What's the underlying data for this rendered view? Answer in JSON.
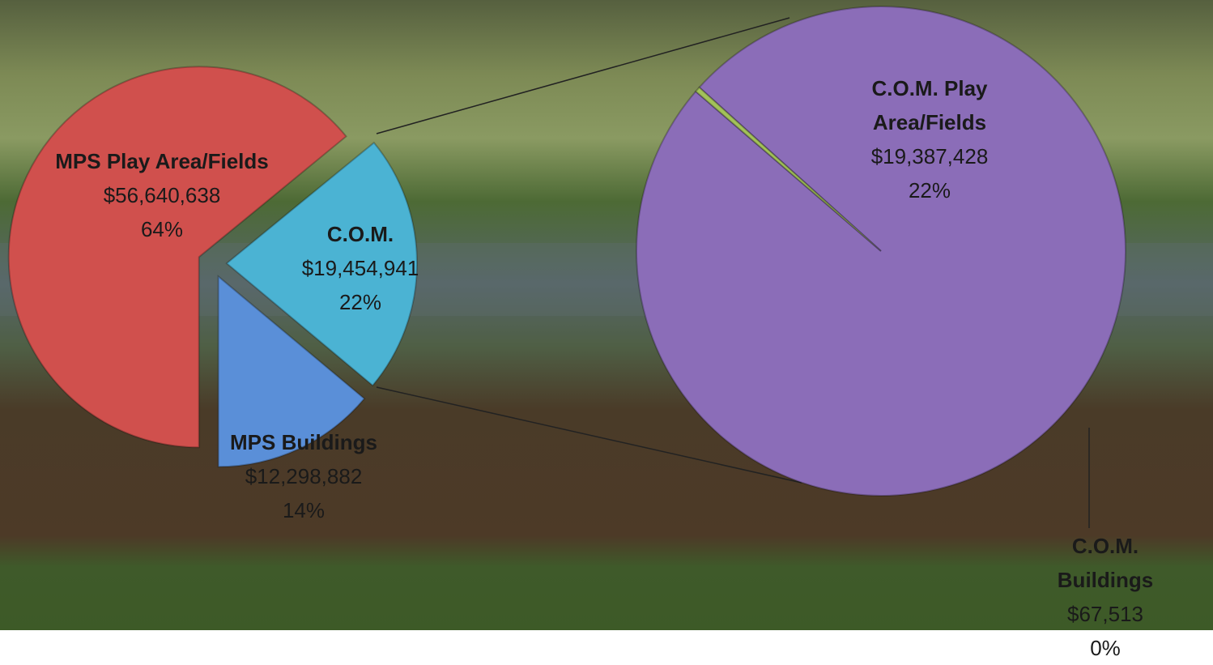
{
  "chart_data": [
    {
      "type": "pie",
      "categories": [
        "MPS Play Area/Fields",
        "C.O.M.",
        "MPS Buildings"
      ],
      "values": [
        56640638,
        19454941,
        12298882
      ],
      "value_labels": [
        "$56,640,638",
        "$19,454,941",
        "$12,298,882"
      ],
      "percent_labels": [
        "64%",
        "22%",
        "14%"
      ],
      "colors": [
        "#d0504d",
        "#4bb3d3",
        "#5a8fd8"
      ]
    },
    {
      "type": "pie",
      "categories": [
        "C.O.M. Play Area/Fields",
        "C.O.M. Buildings"
      ],
      "values": [
        19387428,
        67513
      ],
      "value_labels": [
        "$19,387,428",
        "$67,513"
      ],
      "percent_labels": [
        "22%",
        "0%"
      ],
      "colors": [
        "#8b6db8",
        "#a3c25a"
      ]
    }
  ]
}
